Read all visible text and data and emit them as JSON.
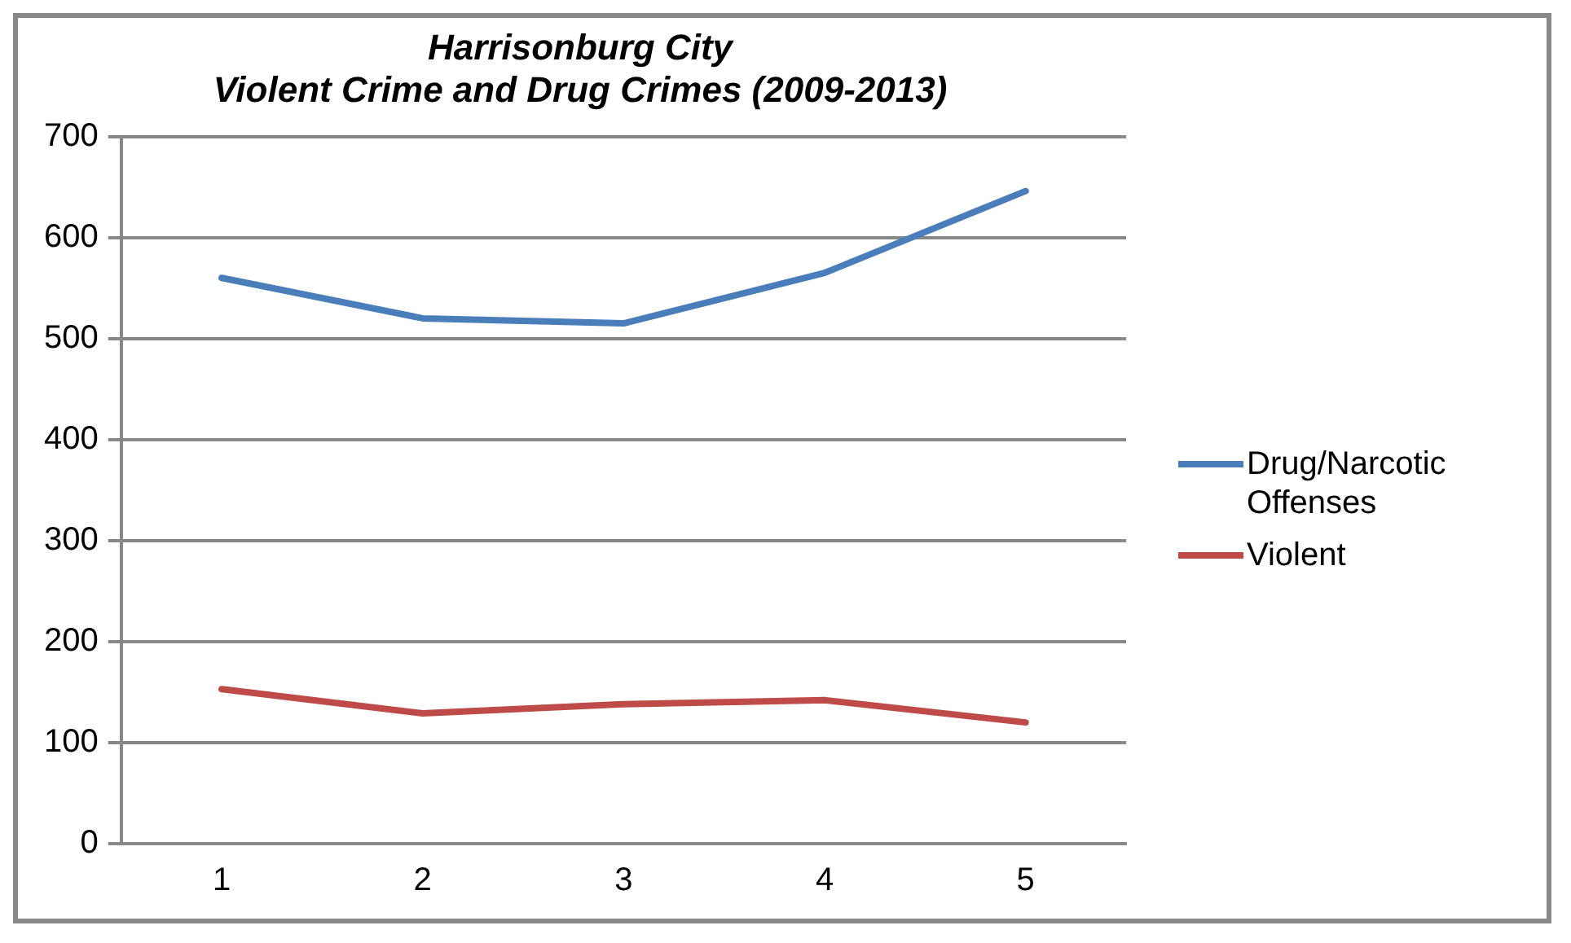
{
  "chart_data": {
    "type": "line",
    "title": "Harrisonburg City\nViolent Crime and Drug Crimes (2009-2013)",
    "categories": [
      "1",
      "2",
      "3",
      "4",
      "5"
    ],
    "series": [
      {
        "name": "Drug/Narcotic Offenses",
        "color": "#4a7ebb",
        "values": [
          560,
          520,
          515,
          565,
          646
        ]
      },
      {
        "name": "Violent",
        "color": "#be4b48",
        "values": [
          153,
          129,
          138,
          142,
          120
        ]
      }
    ],
    "ylim": [
      0,
      700
    ],
    "yticks": [
      0,
      100,
      200,
      300,
      400,
      500,
      600,
      700
    ],
    "grid": "y",
    "legend": "right",
    "marker": "none"
  }
}
